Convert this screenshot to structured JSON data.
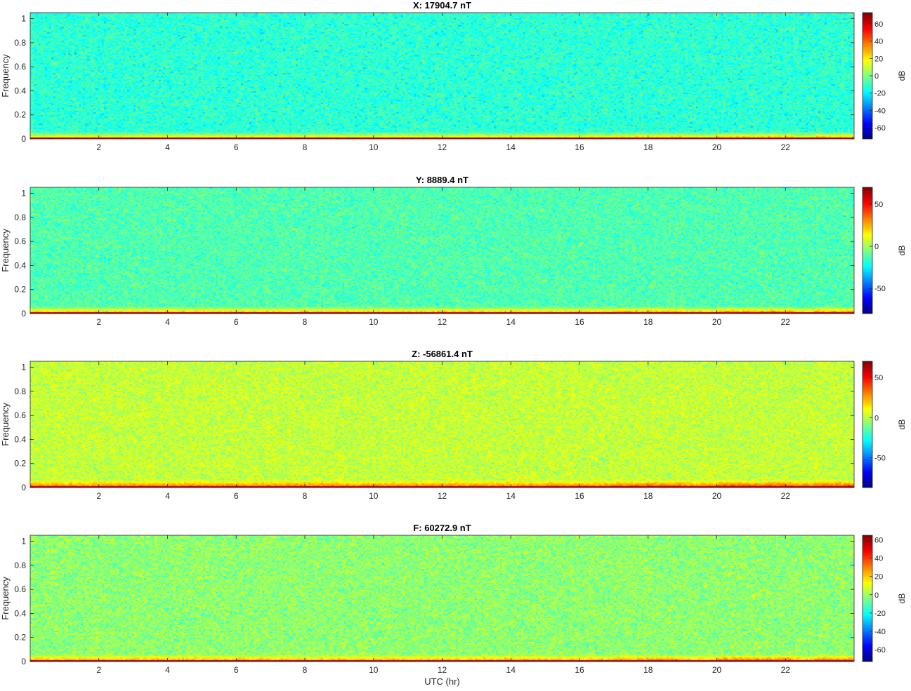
{
  "figure": {
    "xlabel": "UTC (hr)"
  },
  "chart_data": [
    {
      "type": "heatmap",
      "title": "X: 17904.7 nT",
      "xlabel": "",
      "ylabel": "Frequency",
      "xlim": [
        0,
        24
      ],
      "ylim": [
        0,
        1.05
      ],
      "xticks": [
        2,
        4,
        6,
        8,
        10,
        12,
        14,
        16,
        18,
        20,
        22
      ],
      "yticks": [
        0,
        0.2,
        0.4,
        0.6,
        0.8,
        1
      ],
      "colorbar": {
        "label": "dB",
        "range": [
          -73,
          73
        ],
        "ticks": [
          60,
          40,
          20,
          0,
          -20,
          -40,
          -60
        ]
      },
      "background_level_db": -12,
      "low_band_level_db": 22,
      "bottom_line_level_db": 65,
      "colormap": "jet"
    },
    {
      "type": "heatmap",
      "title": "Y: 8889.4 nT",
      "xlabel": "",
      "ylabel": "Frequency",
      "xlim": [
        0,
        24
      ],
      "ylim": [
        0,
        1.05
      ],
      "xticks": [
        2,
        4,
        6,
        8,
        10,
        12,
        14,
        16,
        18,
        20,
        22
      ],
      "yticks": [
        0,
        0.2,
        0.4,
        0.6,
        0.8,
        1
      ],
      "colorbar": {
        "label": "dB",
        "range": [
          -80,
          70
        ],
        "ticks": [
          50,
          0,
          -50
        ]
      },
      "background_level_db": -12,
      "low_band_level_db": 25,
      "bottom_line_level_db": 65,
      "colormap": "jet"
    },
    {
      "type": "heatmap",
      "title": "Z: -56861.4 nT",
      "xlabel": "",
      "ylabel": "Frequency",
      "xlim": [
        0,
        24
      ],
      "ylim": [
        0,
        1.05
      ],
      "xticks": [
        2,
        4,
        6,
        8,
        10,
        12,
        14,
        16,
        18,
        20,
        22
      ],
      "yticks": [
        0,
        0.2,
        0.4,
        0.6,
        0.8,
        1
      ],
      "colorbar": {
        "label": "dB",
        "range": [
          -87,
          70
        ],
        "ticks": [
          50,
          0,
          -50
        ]
      },
      "background_level_db": 2,
      "low_band_level_db": 35,
      "bottom_line_level_db": 65,
      "colormap": "jet"
    },
    {
      "type": "heatmap",
      "title": "F: 60272.9 nT",
      "xlabel": "",
      "ylabel": "Frequency",
      "xlim": [
        0,
        24
      ],
      "ylim": [
        0,
        1.05
      ],
      "xticks": [
        2,
        4,
        6,
        8,
        10,
        12,
        14,
        16,
        18,
        20,
        22
      ],
      "yticks": [
        0,
        0.2,
        0.4,
        0.6,
        0.8,
        1
      ],
      "colorbar": {
        "label": "dB",
        "range": [
          -73,
          65
        ],
        "ticks": [
          60,
          40,
          20,
          0,
          -20,
          -40,
          -60
        ]
      },
      "background_level_db": -2,
      "low_band_level_db": 25,
      "bottom_line_level_db": 62,
      "colormap": "jet"
    }
  ]
}
